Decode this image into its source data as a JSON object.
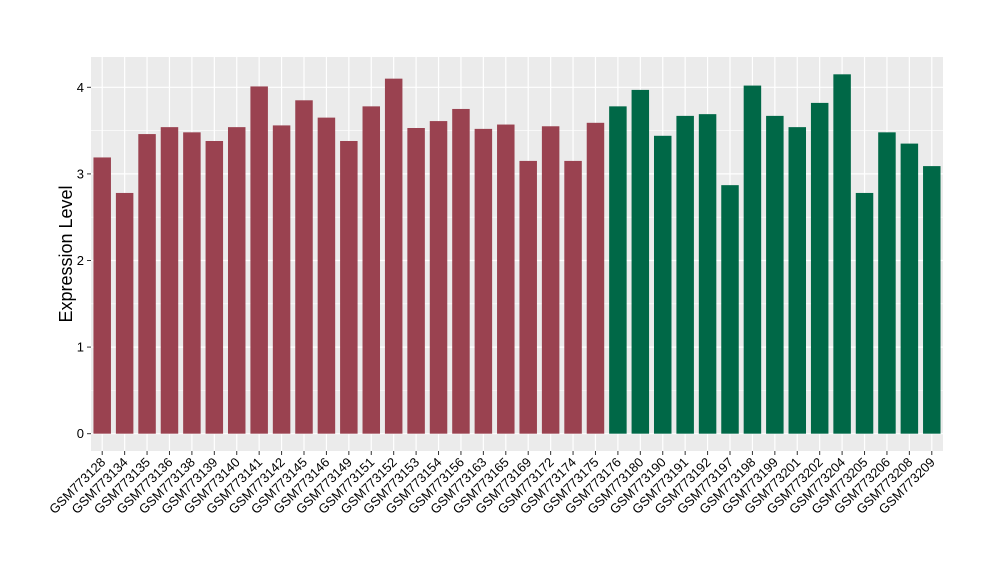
{
  "chart_data": {
    "type": "bar",
    "title": "",
    "xlabel": "",
    "ylabel": "Expression Level",
    "ylim": [
      -0.2,
      4.35
    ],
    "yticks": [
      0,
      1,
      2,
      3,
      4
    ],
    "grid": true,
    "legend": "none",
    "colors": {
      "panel_background": "#EBEBEB",
      "grid_major": "#FFFFFF",
      "group_a": "#9A4250",
      "group_b": "#006847"
    },
    "categories": [
      "GSM773128",
      "GSM773134",
      "GSM773135",
      "GSM773136",
      "GSM773138",
      "GSM773139",
      "GSM773140",
      "GSM773141",
      "GSM773142",
      "GSM773145",
      "GSM773146",
      "GSM773149",
      "GSM773151",
      "GSM773152",
      "GSM773153",
      "GSM773154",
      "GSM773156",
      "GSM773163",
      "GSM773165",
      "GSM773169",
      "GSM773172",
      "GSM773174",
      "GSM773175",
      "GSM773176",
      "GSM773180",
      "GSM773190",
      "GSM773191",
      "GSM773192",
      "GSM773197",
      "GSM773198",
      "GSM773199",
      "GSM773201",
      "GSM773202",
      "GSM773204",
      "GSM773205",
      "GSM773206",
      "GSM773208",
      "GSM773209"
    ],
    "values": [
      3.19,
      2.78,
      3.46,
      3.54,
      3.48,
      3.38,
      3.54,
      4.01,
      3.56,
      3.85,
      3.65,
      3.38,
      3.78,
      4.1,
      3.53,
      3.61,
      3.75,
      3.52,
      3.57,
      3.15,
      3.55,
      3.15,
      3.59,
      3.78,
      3.97,
      3.44,
      3.67,
      3.69,
      2.87,
      4.02,
      3.67,
      3.54,
      3.82,
      4.15,
      2.78,
      3.48,
      3.35,
      3.09
    ],
    "groups": [
      "a",
      "a",
      "a",
      "a",
      "a",
      "a",
      "a",
      "a",
      "a",
      "a",
      "a",
      "a",
      "a",
      "a",
      "a",
      "a",
      "a",
      "a",
      "a",
      "a",
      "a",
      "a",
      "a",
      "b",
      "b",
      "b",
      "b",
      "b",
      "b",
      "b",
      "b",
      "b",
      "b",
      "b",
      "b",
      "b",
      "b",
      "b"
    ]
  }
}
